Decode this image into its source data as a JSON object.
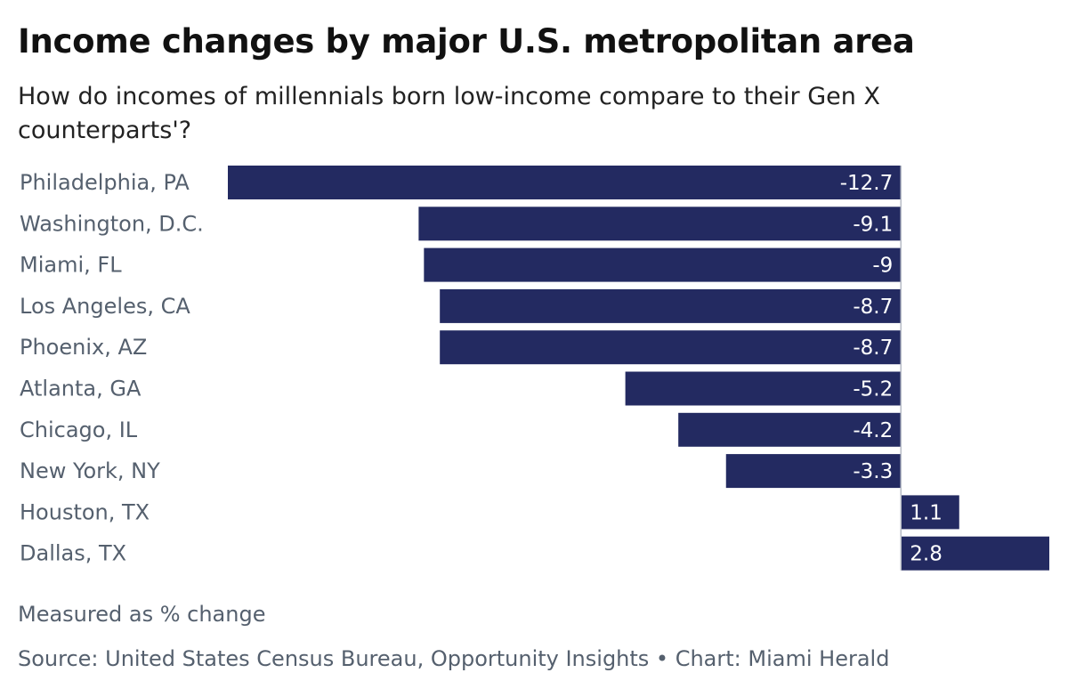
{
  "chart_data": {
    "type": "bar",
    "orientation": "horizontal",
    "title": "Income changes by major U.S. metropolitan area",
    "subtitle": "How do incomes of millennials born low-income compare to their Gen X counterparts'?",
    "categories": [
      "Philadelphia, PA",
      "Washington, D.C.",
      "Miami, FL",
      "Los Angeles, CA",
      "Phoenix, AZ",
      "Atlanta, GA",
      "Chicago, IL",
      "New York, NY",
      "Houston, TX",
      "Dallas, TX"
    ],
    "values": [
      -12.7,
      -9.1,
      -9,
      -8.7,
      -8.7,
      -5.2,
      -4.2,
      -3.3,
      1.1,
      2.8
    ],
    "value_labels": [
      "-12.7",
      "-9.1",
      "-9",
      "-8.7",
      "-8.7",
      "-5.2",
      "-4.2",
      "-3.3",
      "1.1",
      "2.8"
    ],
    "xlim": [
      -12.7,
      2.8
    ],
    "bar_color": "#232a61",
    "axis_line_color": "#b7bcc6",
    "note": "Measured as % change",
    "source": "Source: United States Census Bureau, Opportunity Insights • Chart: Miami Herald"
  }
}
